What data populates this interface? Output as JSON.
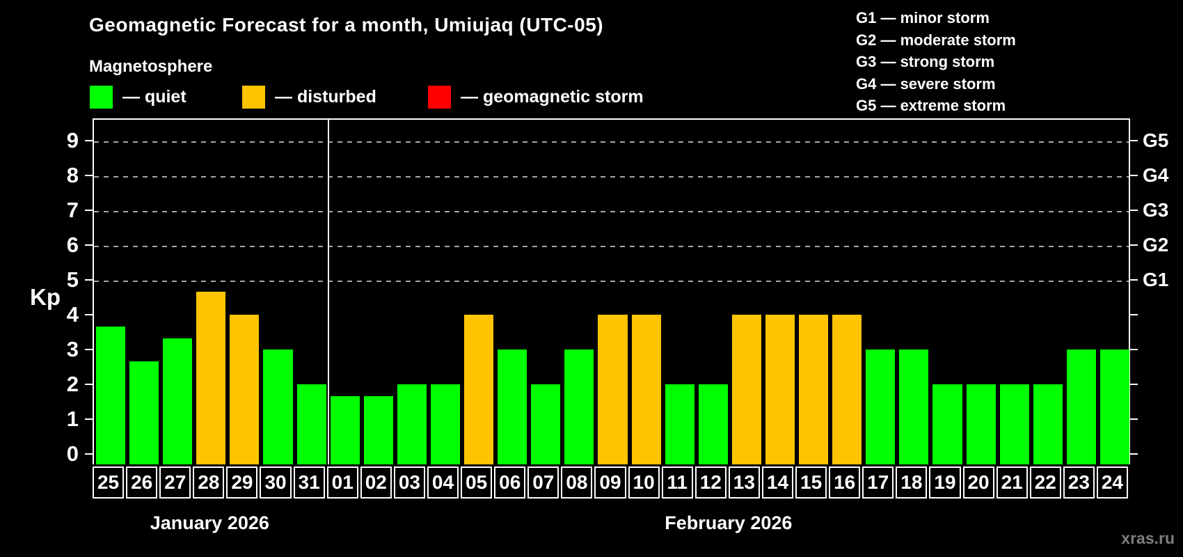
{
  "title": "Geomagnetic Forecast for a month, Umiujaq (UTC-05)",
  "subtitle": "Magnetosphere",
  "legend": [
    {
      "key": "quiet",
      "label": "— quiet",
      "color": "#00ff00"
    },
    {
      "key": "disturbed",
      "label": "— disturbed",
      "color": "#ffc400"
    },
    {
      "key": "storm",
      "label": "— geomagnetic storm",
      "color": "#ff0000"
    }
  ],
  "g_legend": [
    "G1 — minor storm",
    "G2 — moderate storm",
    "G3 — strong storm",
    "G4 — severe storm",
    "G5 — extreme storm"
  ],
  "watermark": "xras.ru",
  "chart_data": {
    "type": "bar",
    "title": "Geomagnetic Forecast for a month, Umiujaq (UTC-05)",
    "ylabel": "Kp",
    "ylim": [
      -0.3,
      9.64
    ],
    "yticks": [
      0,
      1,
      2,
      3,
      4,
      5,
      6,
      7,
      8,
      9
    ],
    "gridlines_at": [
      5,
      6,
      7,
      8,
      9
    ],
    "grid": "dashed horizontal at storm levels only",
    "legend_position": "top",
    "right_axis": [
      {
        "kp": 5,
        "label": "G1"
      },
      {
        "kp": 6,
        "label": "G2"
      },
      {
        "kp": 7,
        "label": "G3"
      },
      {
        "kp": 8,
        "label": "G4"
      },
      {
        "kp": 9,
        "label": "G5"
      }
    ],
    "months": [
      {
        "label": "January 2026",
        "days": 7
      },
      {
        "label": "February 2026",
        "days": 24
      }
    ],
    "categories": [
      "25",
      "26",
      "27",
      "28",
      "29",
      "30",
      "31",
      "01",
      "02",
      "03",
      "04",
      "05",
      "06",
      "07",
      "08",
      "09",
      "10",
      "11",
      "12",
      "13",
      "14",
      "15",
      "16",
      "17",
      "18",
      "19",
      "20",
      "21",
      "22",
      "23",
      "24"
    ],
    "values": [
      3.67,
      2.67,
      3.33,
      4.67,
      4,
      3,
      2,
      1.67,
      1.67,
      2,
      2,
      4,
      3,
      2,
      3,
      4,
      4,
      2,
      2,
      4,
      4,
      4,
      4,
      3,
      3,
      2,
      2,
      2,
      2,
      3,
      3
    ],
    "statuses": [
      "quiet",
      "quiet",
      "quiet",
      "disturbed",
      "disturbed",
      "quiet",
      "quiet",
      "quiet",
      "quiet",
      "quiet",
      "quiet",
      "disturbed",
      "quiet",
      "quiet",
      "quiet",
      "disturbed",
      "disturbed",
      "quiet",
      "quiet",
      "disturbed",
      "disturbed",
      "disturbed",
      "disturbed",
      "quiet",
      "quiet",
      "quiet",
      "quiet",
      "quiet",
      "quiet",
      "quiet",
      "quiet"
    ]
  }
}
